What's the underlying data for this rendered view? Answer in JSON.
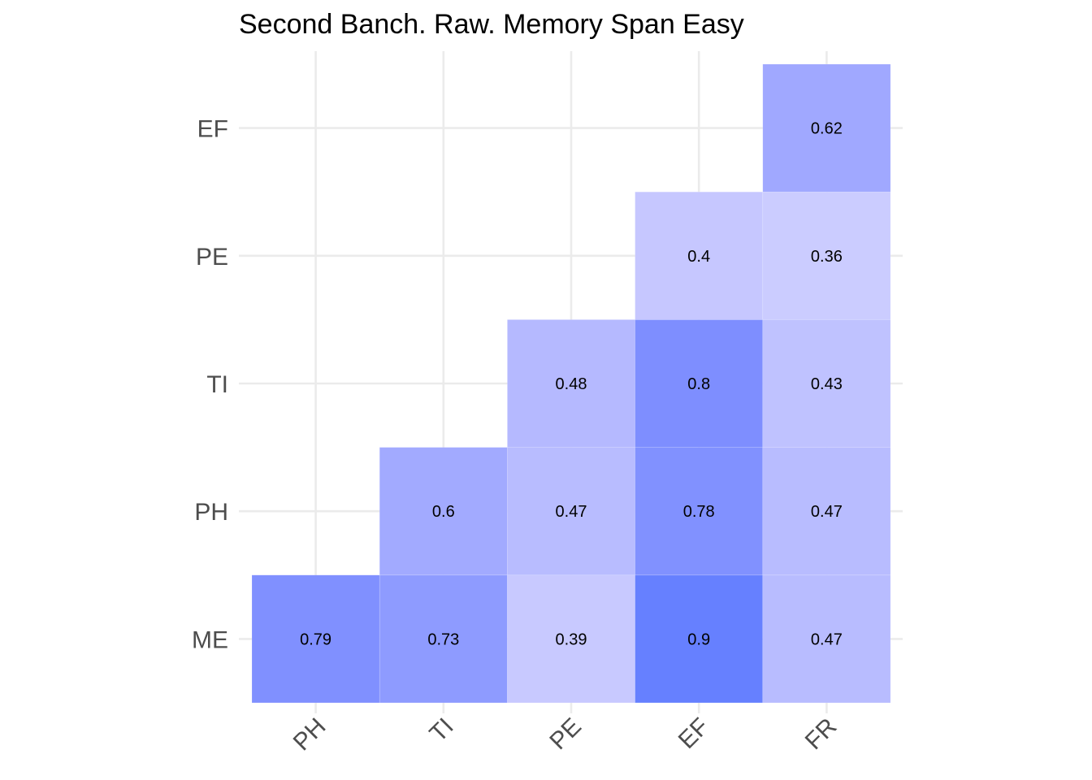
{
  "chart_data": {
    "type": "heatmap",
    "title": "Second Banch. Raw. Memory Span Easy",
    "xlabel": "",
    "ylabel": "",
    "x_categories": [
      "PH",
      "TI",
      "PE",
      "EF",
      "FR"
    ],
    "y_categories": [
      "ME",
      "PH",
      "TI",
      "PE",
      "EF"
    ],
    "grid": true,
    "legend": "none",
    "color_low": "#ffffff",
    "color_high": "#5b78ff",
    "cells": [
      {
        "x": "PH",
        "y": "ME",
        "value": 0.79,
        "label": "0.79",
        "color": "#8090ff"
      },
      {
        "x": "TI",
        "y": "ME",
        "value": 0.73,
        "label": "0.73",
        "color": "#8e9bff"
      },
      {
        "x": "PE",
        "y": "ME",
        "value": 0.39,
        "label": "0.39",
        "color": "#c8c9ff"
      },
      {
        "x": "EF",
        "y": "ME",
        "value": 0.9,
        "label": "0.9",
        "color": "#6680ff"
      },
      {
        "x": "FR",
        "y": "ME",
        "value": 0.47,
        "label": "0.47",
        "color": "#b8bcff"
      },
      {
        "x": "TI",
        "y": "PH",
        "value": 0.6,
        "label": "0.6",
        "color": "#a2aaff"
      },
      {
        "x": "PE",
        "y": "PH",
        "value": 0.47,
        "label": "0.47",
        "color": "#b8bcff"
      },
      {
        "x": "EF",
        "y": "PH",
        "value": 0.78,
        "label": "0.78",
        "color": "#8191ff"
      },
      {
        "x": "FR",
        "y": "PH",
        "value": 0.47,
        "label": "0.47",
        "color": "#b8bcff"
      },
      {
        "x": "PE",
        "y": "TI",
        "value": 0.48,
        "label": "0.48",
        "color": "#b5b9ff"
      },
      {
        "x": "EF",
        "y": "TI",
        "value": 0.8,
        "label": "0.8",
        "color": "#7e8eff"
      },
      {
        "x": "FR",
        "y": "TI",
        "value": 0.43,
        "label": "0.43",
        "color": "#bfc2ff"
      },
      {
        "x": "EF",
        "y": "PE",
        "value": 0.4,
        "label": "0.4",
        "color": "#c6c7ff"
      },
      {
        "x": "FR",
        "y": "PE",
        "value": 0.36,
        "label": "0.36",
        "color": "#cbccff"
      },
      {
        "x": "FR",
        "y": "EF",
        "value": 0.62,
        "label": "0.62",
        "color": "#a0a8ff"
      }
    ]
  }
}
